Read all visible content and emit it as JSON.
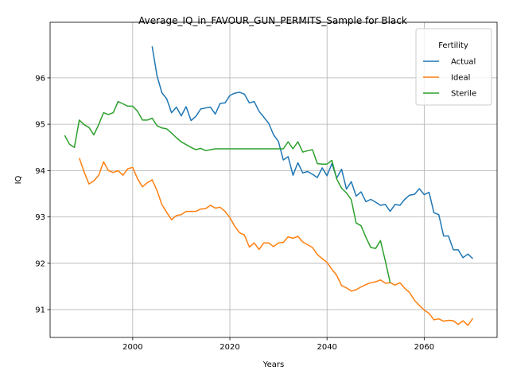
{
  "chart_data": {
    "type": "line",
    "title": "Average_IQ_in_FAVOUR_GUN_PERMITS_Sample for Black",
    "xlabel": "Years",
    "ylabel": "IQ",
    "xlim": [
      1983,
      2075
    ],
    "ylim": [
      90.4,
      97.2
    ],
    "xticks": [
      2000,
      2020,
      2040,
      2060
    ],
    "yticks": [
      91,
      92,
      93,
      94,
      95,
      96
    ],
    "grid": true,
    "legend": {
      "title": "Fertility",
      "position": "top-right"
    },
    "series": [
      {
        "name": "Actual",
        "color": "#1f77b4",
        "points": [
          [
            2004,
            96.68
          ],
          [
            2005,
            96.05
          ],
          [
            2006,
            95.68
          ],
          [
            2007,
            95.55
          ],
          [
            2008,
            95.25
          ],
          [
            2009,
            95.37
          ],
          [
            2010,
            95.18
          ],
          [
            2011,
            95.38
          ],
          [
            2012,
            95.08
          ],
          [
            2013,
            95.17
          ],
          [
            2014,
            95.33
          ],
          [
            2015,
            95.35
          ],
          [
            2016,
            95.37
          ],
          [
            2017,
            95.22
          ],
          [
            2018,
            95.45
          ],
          [
            2019,
            95.46
          ],
          [
            2020,
            95.62
          ],
          [
            2021,
            95.67
          ],
          [
            2022,
            95.69
          ],
          [
            2023,
            95.65
          ],
          [
            2024,
            95.46
          ],
          [
            2025,
            95.49
          ],
          [
            2026,
            95.28
          ],
          [
            2027,
            95.15
          ],
          [
            2028,
            95.02
          ],
          [
            2029,
            94.77
          ],
          [
            2030,
            94.63
          ],
          [
            2031,
            94.23
          ],
          [
            2032,
            94.3
          ],
          [
            2033,
            93.9
          ],
          [
            2034,
            94.17
          ],
          [
            2035,
            93.95
          ],
          [
            2036,
            93.98
          ],
          [
            2037,
            93.92
          ],
          [
            2038,
            93.85
          ],
          [
            2039,
            94.06
          ],
          [
            2040,
            93.89
          ],
          [
            2041,
            94.15
          ],
          [
            2042,
            93.84
          ],
          [
            2043,
            94.03
          ],
          [
            2044,
            93.6
          ],
          [
            2045,
            93.76
          ],
          [
            2046,
            93.45
          ],
          [
            2047,
            93.54
          ],
          [
            2048,
            93.33
          ],
          [
            2049,
            93.38
          ],
          [
            2050,
            93.32
          ],
          [
            2051,
            93.25
          ],
          [
            2052,
            93.27
          ],
          [
            2053,
            93.12
          ],
          [
            2054,
            93.27
          ],
          [
            2055,
            93.25
          ],
          [
            2056,
            93.38
          ],
          [
            2057,
            93.47
          ],
          [
            2058,
            93.49
          ],
          [
            2059,
            93.61
          ],
          [
            2060,
            93.48
          ],
          [
            2061,
            93.53
          ],
          [
            2062,
            93.09
          ],
          [
            2063,
            93.05
          ],
          [
            2064,
            92.59
          ],
          [
            2065,
            92.59
          ],
          [
            2066,
            92.29
          ],
          [
            2067,
            92.29
          ],
          [
            2068,
            92.12
          ],
          [
            2069,
            92.2
          ],
          [
            2070,
            92.1
          ]
        ]
      },
      {
        "name": "Ideal",
        "color": "#ff7f0e",
        "points": [
          [
            1989,
            94.27
          ],
          [
            1990,
            93.97
          ],
          [
            1991,
            93.71
          ],
          [
            1992,
            93.78
          ],
          [
            1993,
            93.9
          ],
          [
            1994,
            94.19
          ],
          [
            1995,
            94.0
          ],
          [
            1996,
            93.96
          ],
          [
            1997,
            94.0
          ],
          [
            1998,
            93.9
          ],
          [
            1999,
            94.04
          ],
          [
            2000,
            94.07
          ],
          [
            2001,
            93.82
          ],
          [
            2002,
            93.65
          ],
          [
            2003,
            93.74
          ],
          [
            2004,
            93.8
          ],
          [
            2005,
            93.57
          ],
          [
            2006,
            93.27
          ],
          [
            2007,
            93.1
          ],
          [
            2008,
            92.94
          ],
          [
            2009,
            93.03
          ],
          [
            2010,
            93.05
          ],
          [
            2011,
            93.12
          ],
          [
            2012,
            93.12
          ],
          [
            2013,
            93.12
          ],
          [
            2014,
            93.17
          ],
          [
            2015,
            93.18
          ],
          [
            2016,
            93.25
          ],
          [
            2017,
            93.19
          ],
          [
            2018,
            93.21
          ],
          [
            2019,
            93.12
          ],
          [
            2020,
            92.99
          ],
          [
            2021,
            92.8
          ],
          [
            2022,
            92.66
          ],
          [
            2023,
            92.61
          ],
          [
            2024,
            92.35
          ],
          [
            2025,
            92.44
          ],
          [
            2026,
            92.3
          ],
          [
            2027,
            92.44
          ],
          [
            2028,
            92.44
          ],
          [
            2029,
            92.36
          ],
          [
            2030,
            92.44
          ],
          [
            2031,
            92.45
          ],
          [
            2032,
            92.57
          ],
          [
            2033,
            92.54
          ],
          [
            2034,
            92.58
          ],
          [
            2035,
            92.46
          ],
          [
            2036,
            92.4
          ],
          [
            2037,
            92.34
          ],
          [
            2038,
            92.19
          ],
          [
            2039,
            92.1
          ],
          [
            2040,
            92.02
          ],
          [
            2041,
            91.87
          ],
          [
            2042,
            91.74
          ],
          [
            2043,
            91.52
          ],
          [
            2044,
            91.47
          ],
          [
            2045,
            91.4
          ],
          [
            2046,
            91.43
          ],
          [
            2047,
            91.49
          ],
          [
            2048,
            91.54
          ],
          [
            2049,
            91.58
          ],
          [
            2050,
            91.6
          ],
          [
            2051,
            91.64
          ],
          [
            2052,
            91.57
          ],
          [
            2053,
            91.58
          ],
          [
            2054,
            91.53
          ],
          [
            2055,
            91.58
          ],
          [
            2056,
            91.46
          ],
          [
            2057,
            91.37
          ],
          [
            2058,
            91.2
          ],
          [
            2059,
            91.09
          ],
          [
            2060,
            90.99
          ],
          [
            2061,
            90.92
          ],
          [
            2062,
            90.78
          ],
          [
            2063,
            90.8
          ],
          [
            2064,
            90.75
          ],
          [
            2065,
            90.77
          ],
          [
            2066,
            90.76
          ],
          [
            2067,
            90.68
          ],
          [
            2068,
            90.76
          ],
          [
            2069,
            90.66
          ],
          [
            2070,
            90.81
          ]
        ]
      },
      {
        "name": "Sterile",
        "color": "#2ca02c",
        "points": [
          [
            1986,
            94.76
          ],
          [
            1987,
            94.57
          ],
          [
            1988,
            94.5
          ],
          [
            1989,
            95.09
          ],
          [
            1990,
            94.99
          ],
          [
            1991,
            94.93
          ],
          [
            1992,
            94.77
          ],
          [
            1993,
            94.99
          ],
          [
            1994,
            95.25
          ],
          [
            1995,
            95.21
          ],
          [
            1996,
            95.25
          ],
          [
            1997,
            95.49
          ],
          [
            1998,
            95.44
          ],
          [
            1999,
            95.39
          ],
          [
            2000,
            95.39
          ],
          [
            2001,
            95.28
          ],
          [
            2002,
            95.09
          ],
          [
            2003,
            95.09
          ],
          [
            2004,
            95.13
          ],
          [
            2005,
            94.97
          ],
          [
            2006,
            94.92
          ],
          [
            2007,
            94.9
          ],
          [
            2008,
            94.81
          ],
          [
            2009,
            94.71
          ],
          [
            2010,
            94.62
          ],
          [
            2011,
            94.56
          ],
          [
            2012,
            94.5
          ],
          [
            2013,
            94.45
          ],
          [
            2014,
            94.48
          ],
          [
            2015,
            94.43
          ],
          [
            2016,
            94.45
          ],
          [
            2017,
            94.47
          ],
          [
            2018,
            94.47
          ],
          [
            2019,
            94.47
          ],
          [
            2020,
            94.47
          ],
          [
            2021,
            94.47
          ],
          [
            2022,
            94.47
          ],
          [
            2023,
            94.47
          ],
          [
            2024,
            94.47
          ],
          [
            2025,
            94.47
          ],
          [
            2026,
            94.47
          ],
          [
            2027,
            94.47
          ],
          [
            2028,
            94.47
          ],
          [
            2029,
            94.47
          ],
          [
            2030,
            94.47
          ],
          [
            2031,
            94.47
          ],
          [
            2032,
            94.62
          ],
          [
            2033,
            94.47
          ],
          [
            2034,
            94.62
          ],
          [
            2035,
            94.4
          ],
          [
            2036,
            94.43
          ],
          [
            2037,
            94.45
          ],
          [
            2038,
            94.15
          ],
          [
            2039,
            94.14
          ],
          [
            2040,
            94.14
          ],
          [
            2041,
            94.22
          ],
          [
            2042,
            93.82
          ],
          [
            2043,
            93.62
          ],
          [
            2044,
            93.52
          ],
          [
            2045,
            93.37
          ],
          [
            2046,
            92.87
          ],
          [
            2047,
            92.81
          ],
          [
            2048,
            92.56
          ],
          [
            2049,
            92.34
          ],
          [
            2050,
            92.32
          ],
          [
            2051,
            92.49
          ],
          [
            2052,
            92.05
          ],
          [
            2053,
            91.58
          ]
        ]
      }
    ]
  }
}
